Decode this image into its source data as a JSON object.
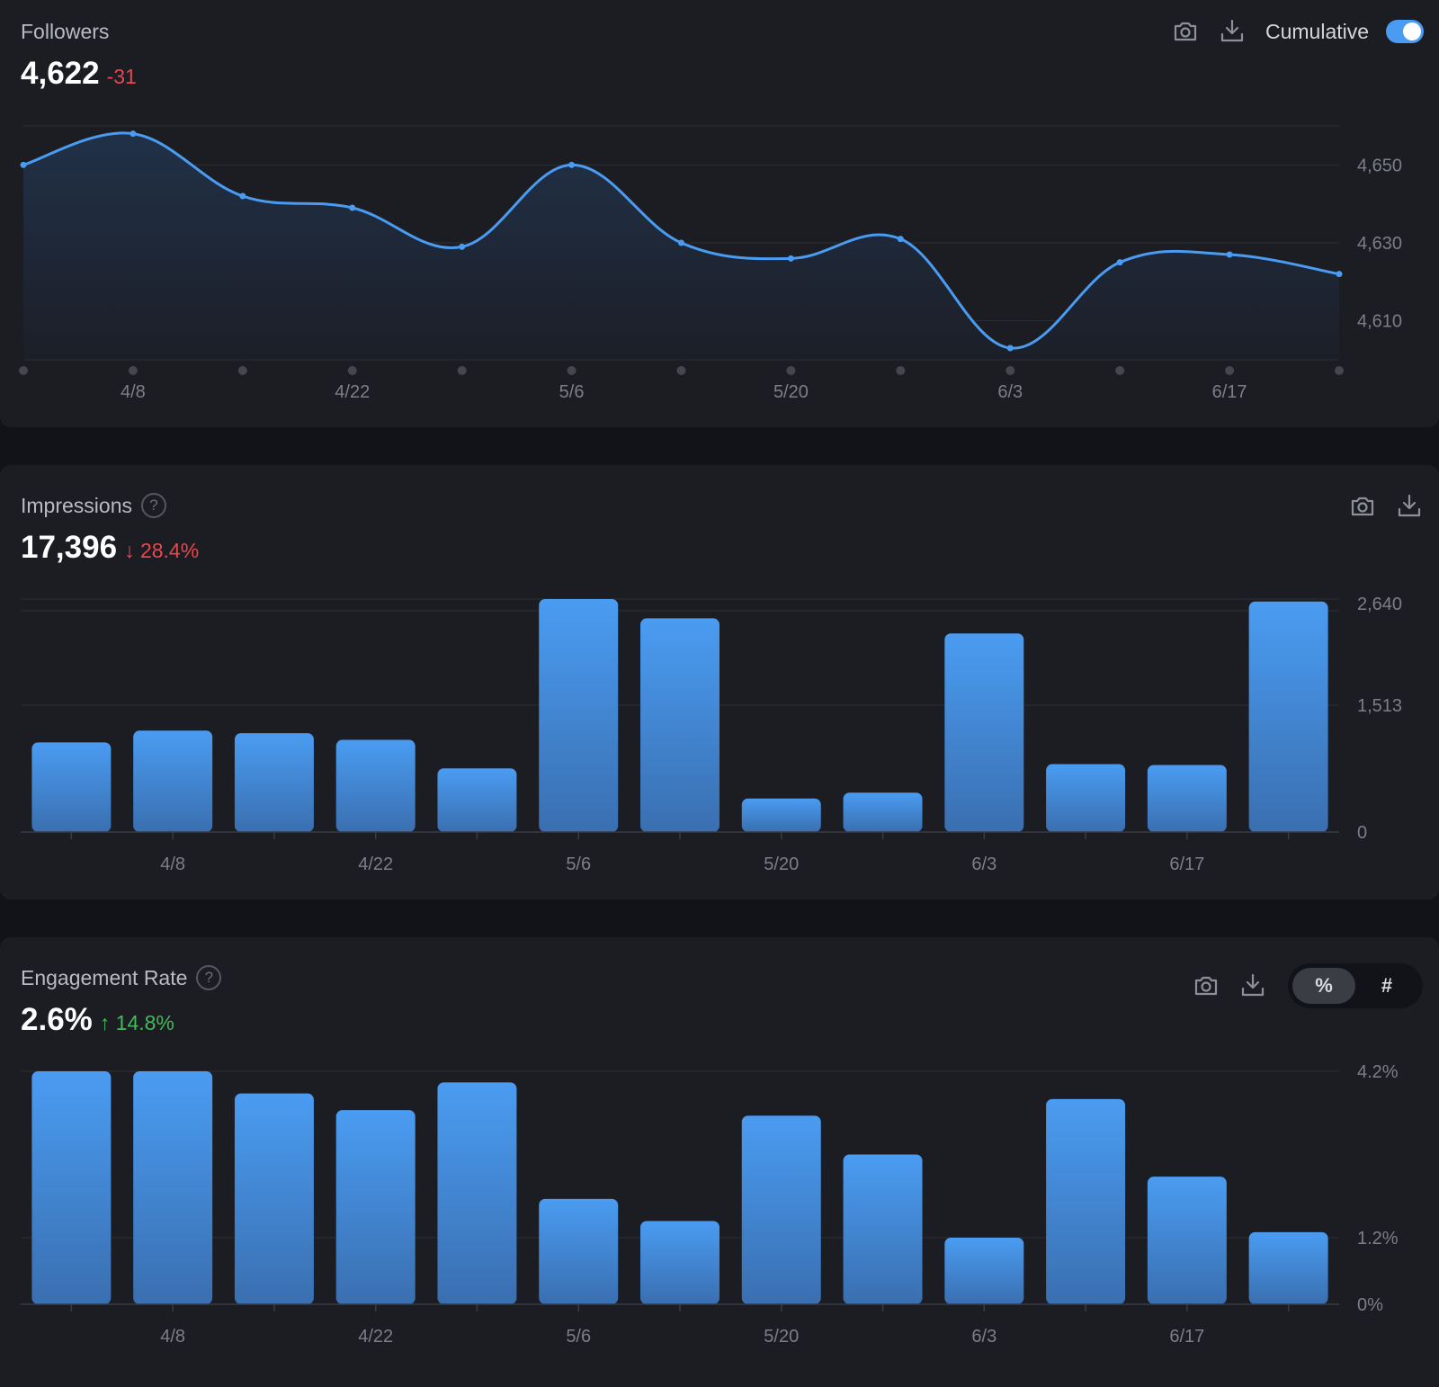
{
  "colors": {
    "accent": "#4a9cf2",
    "negative": "#e5484d",
    "positive": "#46b85a"
  },
  "followers": {
    "title": "Followers",
    "value": "4,622",
    "delta": "-31",
    "cumulative_label": "Cumulative",
    "cumulative_on": true,
    "icons": [
      "camera-icon",
      "download-icon"
    ]
  },
  "impressions": {
    "title": "Impressions",
    "value": "17,396",
    "delta": "28.4%",
    "delta_direction": "down",
    "icons": [
      "help-icon",
      "camera-icon",
      "download-icon"
    ]
  },
  "engagement": {
    "title": "Engagement Rate",
    "value": "2.6%",
    "delta": "14.8%",
    "delta_direction": "up",
    "mode_options": [
      "%",
      "#"
    ],
    "mode_selected": "%",
    "icons": [
      "help-icon",
      "camera-icon",
      "download-icon"
    ]
  },
  "chart_data": [
    {
      "type": "area",
      "x_labels": [
        "4/8",
        "4/22",
        "5/6",
        "5/20",
        "6/3",
        "6/17"
      ],
      "x_points": 13,
      "values": [
        4650,
        4658,
        4642,
        4639,
        4629,
        4650,
        4630,
        4626,
        4631,
        4603,
        4625,
        4627,
        4622
      ],
      "y_ticks": [
        "4,610",
        "4,630",
        "4,650"
      ],
      "ylim": [
        4600,
        4660
      ],
      "grid": true
    },
    {
      "type": "bar",
      "x_labels": [
        "4/8",
        "4/22",
        "5/6",
        "5/20",
        "6/3",
        "6/17"
      ],
      "values": [
        1070,
        1210,
        1180,
        1100,
        760,
        2780,
        2550,
        400,
        470,
        2370,
        810,
        800,
        2750
      ],
      "y_ticks": [
        "0",
        "1,513",
        "2,640"
      ],
      "ylim": [
        0,
        2780
      ],
      "grid": true
    },
    {
      "type": "bar",
      "x_labels": [
        "4/8",
        "4/22",
        "5/6",
        "5/20",
        "6/3",
        "6/17"
      ],
      "values": [
        4.2,
        4.2,
        3.8,
        3.5,
        4.0,
        1.9,
        1.5,
        3.4,
        2.7,
        1.2,
        3.7,
        2.3,
        1.3
      ],
      "y_ticks": [
        "0%",
        "1.2%",
        "4.2%"
      ],
      "ylim": [
        0,
        4.2
      ],
      "grid": true
    }
  ]
}
